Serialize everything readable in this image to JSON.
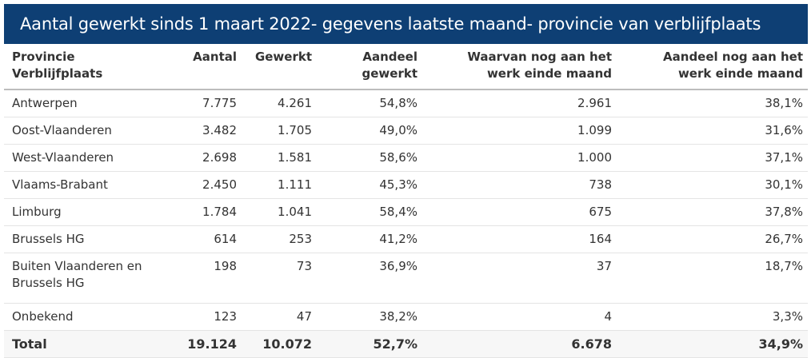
{
  "title": "Aantal gewerkt sinds 1 maart 2022- gegevens laatste maand- provincie van verblijfplaats",
  "colors": {
    "title_bg": "#0e3f74",
    "total_bg": "#f7f7f7"
  },
  "chart_data": {
    "type": "table",
    "columns": [
      "Provincie Verblijfplaats",
      "Aantal",
      "Gewerkt",
      "Aandeel gewerkt",
      "Waarvan nog aan het werk einde maand",
      "Aandeel nog aan het werk einde maand"
    ],
    "rows": [
      [
        "Antwerpen",
        "7.775",
        "4.261",
        "54,8%",
        "2.961",
        "38,1%"
      ],
      [
        "Oost-Vlaanderen",
        "3.482",
        "1.705",
        "49,0%",
        "1.099",
        "31,6%"
      ],
      [
        "West-Vlaanderen",
        "2.698",
        "1.581",
        "58,6%",
        "1.000",
        "37,1%"
      ],
      [
        "Vlaams-Brabant",
        "2.450",
        "1.111",
        "45,3%",
        "738",
        "30,1%"
      ],
      [
        "Limburg",
        "1.784",
        "1.041",
        "58,4%",
        "675",
        "37,8%"
      ],
      [
        "Brussels HG",
        "614",
        "253",
        "41,2%",
        "164",
        "26,7%"
      ],
      [
        "Buiten Vlaanderen en Brussels HG",
        "198",
        "73",
        "36,9%",
        "37",
        "18,7%"
      ],
      [
        "Onbekend",
        "123",
        "47",
        "38,2%",
        "4",
        "3,3%"
      ]
    ],
    "total": [
      "Total",
      "19.124",
      "10.072",
      "52,7%",
      "6.678",
      "34,9%"
    ]
  }
}
